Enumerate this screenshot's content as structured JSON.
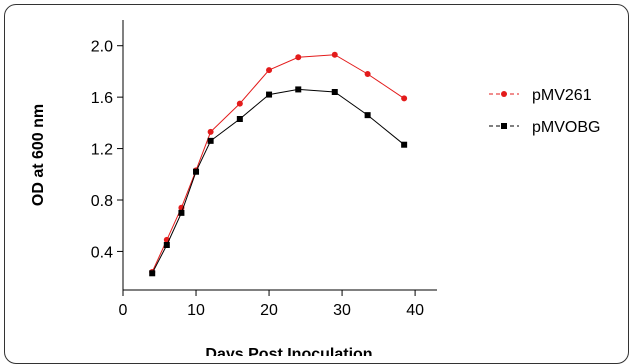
{
  "chart_data": {
    "type": "line",
    "title": "",
    "xlabel": "Days Post Inoculation",
    "ylabel": "OD at 600 nm",
    "xlim": [
      0,
      43
    ],
    "ylim": [
      0.1,
      2.2
    ],
    "xticks": [
      0,
      10,
      20,
      30,
      40
    ],
    "yticks": [
      0.4,
      0.8,
      1.2,
      1.6,
      2.0
    ],
    "xtick_labels": [
      "0",
      "10",
      "20",
      "30",
      "40"
    ],
    "ytick_labels": [
      "0.4",
      "0.8",
      "1.2",
      "1.6",
      "2.0"
    ],
    "grid": false,
    "legend": "right",
    "series": [
      {
        "name": "pMV261",
        "color": "#e31b1b",
        "marker": "circle",
        "x": [
          4,
          6,
          8,
          10,
          12,
          16,
          20,
          24,
          29,
          33.5,
          38.5
        ],
        "y": [
          0.24,
          0.49,
          0.74,
          1.03,
          1.33,
          1.55,
          1.81,
          1.91,
          1.93,
          1.78,
          1.59
        ]
      },
      {
        "name": "pMVOBG",
        "color": "#000000",
        "marker": "square",
        "x": [
          4,
          6,
          8,
          10,
          12,
          16,
          20,
          24,
          29,
          33.5,
          38.5
        ],
        "y": [
          0.23,
          0.45,
          0.7,
          1.02,
          1.26,
          1.43,
          1.62,
          1.66,
          1.64,
          1.46,
          1.23
        ]
      }
    ]
  }
}
